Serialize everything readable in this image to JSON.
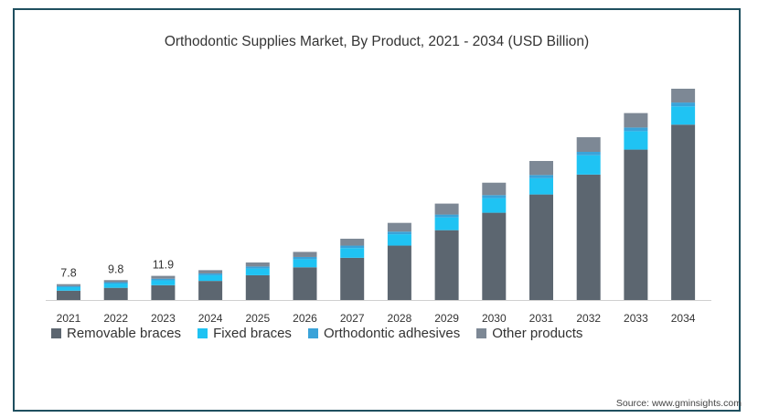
{
  "chart_data": {
    "type": "bar",
    "stacked": true,
    "title": "Orthodontic Supplies Market, By Product, 2021 - 2034 (USD Billion)",
    "categories": [
      "2021",
      "2022",
      "2023",
      "2024",
      "2025",
      "2026",
      "2027",
      "2028",
      "2029",
      "2030",
      "2031",
      "2032",
      "2033",
      "2034"
    ],
    "series": [
      {
        "name": "Removable braces",
        "color": "#5c6670",
        "values": [
          4.6,
          6.0,
          7.3,
          9.4,
          12.2,
          16.1,
          20.8,
          26.8,
          34.4,
          43.0,
          52.0,
          61.8,
          74.1,
          86.4
        ]
      },
      {
        "name": "Fixed braces",
        "color": "#1fc3f3",
        "values": [
          1.7,
          2.1,
          2.4,
          2.8,
          3.3,
          4.0,
          4.8,
          5.6,
          6.3,
          7.2,
          8.0,
          9.5,
          9.1,
          9.0
        ]
      },
      {
        "name": "Orthodontic adhesives",
        "color": "#3aa3d9",
        "values": [
          0.6,
          0.7,
          0.8,
          0.9,
          1.0,
          1.1,
          1.2,
          1.3,
          1.4,
          1.5,
          1.6,
          1.7,
          1.8,
          1.9
        ]
      },
      {
        "name": "Other products",
        "color": "#7d8895",
        "values": [
          0.9,
          1.0,
          1.4,
          1.6,
          2.0,
          2.5,
          3.4,
          4.3,
          5.4,
          6.1,
          6.9,
          7.2,
          7.1,
          6.8
        ]
      }
    ],
    "data_labels": [
      "7.8",
      "9.8",
      "11.9"
    ],
    "ylim": [
      0,
      105
    ],
    "grid": false,
    "legend": "bottom"
  },
  "source": "Source: www.gminsights.com"
}
